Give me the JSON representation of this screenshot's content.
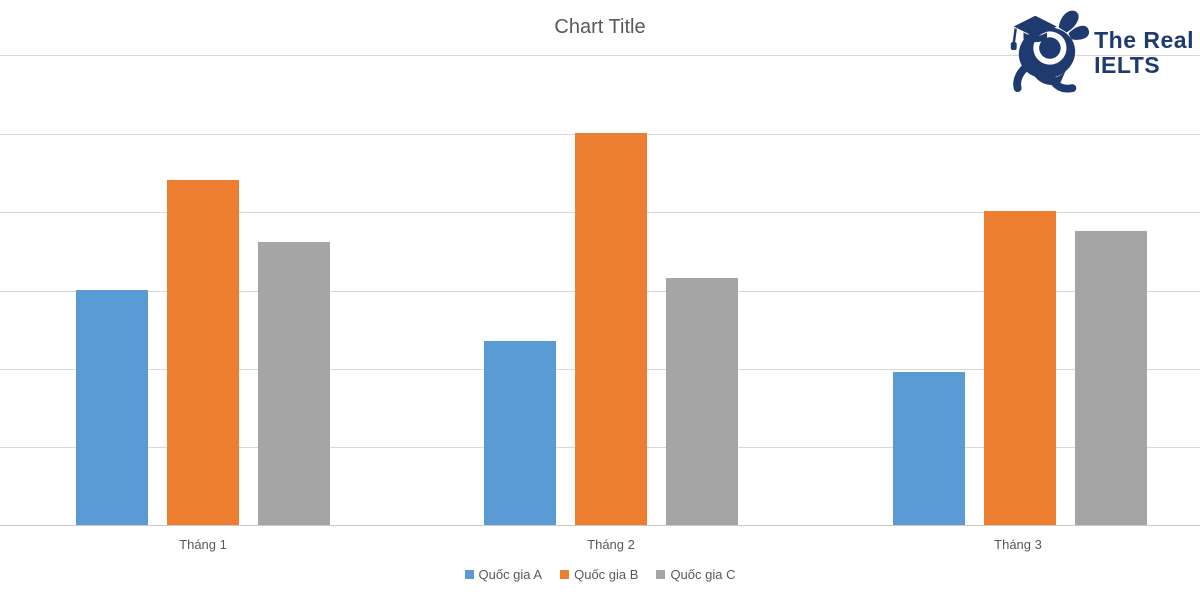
{
  "title": "Chart Title",
  "logo": {
    "line1": "The Real",
    "line2": "IELTS",
    "color": "#1e3a6e",
    "icon": "running-mascot-with-graduation-cap-and-lens"
  },
  "chart_data": {
    "type": "bar",
    "title": "Chart Title",
    "categories": [
      "Tháng 1",
      "Tháng 2",
      "Tháng 3"
    ],
    "series": [
      {
        "name": "Quốc gia A",
        "color": "#5b9bd5",
        "values": [
          30,
          23.5,
          19.5
        ]
      },
      {
        "name": "Quốc gia B",
        "color": "#ed7d31",
        "values": [
          44,
          50,
          40
        ]
      },
      {
        "name": "Quốc gia C",
        "color": "#a5a5a5",
        "values": [
          36,
          31.5,
          37.5
        ]
      }
    ],
    "xlabel": "",
    "ylabel": "",
    "ylim": [
      0,
      60
    ],
    "y_tick_step": 10,
    "y_tick_labels_visible": false,
    "grid": "horizontal",
    "gridline_color": "#d9d9d9",
    "legend_position": "bottom-center",
    "title_color": "#595959",
    "label_color": "#595959",
    "background": "#ffffff"
  }
}
